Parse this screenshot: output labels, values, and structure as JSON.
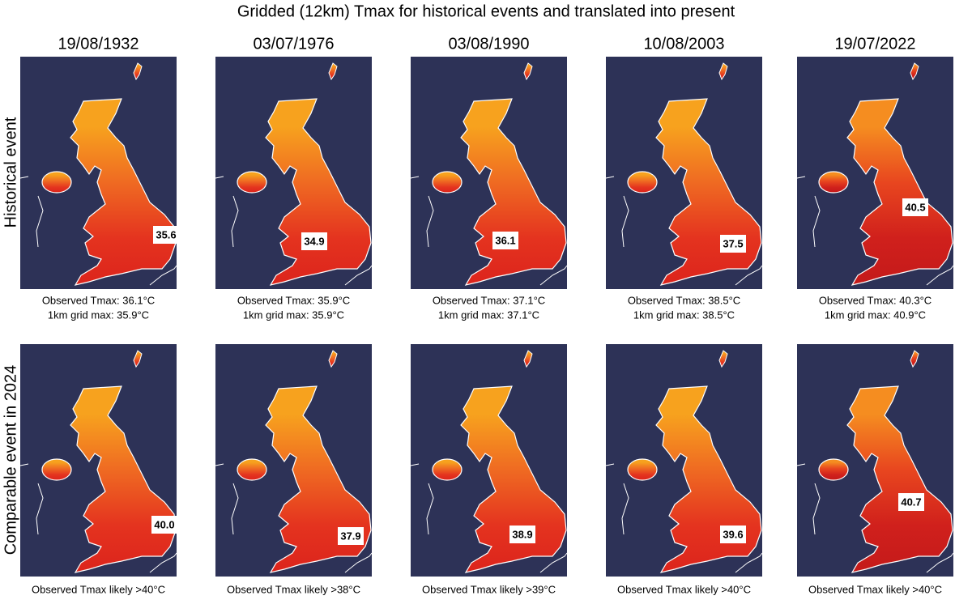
{
  "title": "Gridded (12km) Tmax for historical events and translated into present",
  "row_labels": [
    "Historical event",
    "Comparable event in 2024"
  ],
  "columns": [
    {
      "date": "19/08/1932",
      "historical": {
        "label": "35.6",
        "caption": [
          "Observed Tmax: 36.1°C",
          "1km grid max: 35.9°C"
        ]
      },
      "present": {
        "label": "40.0",
        "caption": "Observed Tmax likely >40°C"
      }
    },
    {
      "date": "03/07/1976",
      "historical": {
        "label": "34.9",
        "caption": [
          "Observed Tmax: 35.9°C",
          "1km grid max: 35.9°C"
        ]
      },
      "present": {
        "label": "37.9",
        "caption": "Observed Tmax likely >38°C"
      }
    },
    {
      "date": "03/08/1990",
      "historical": {
        "label": "36.1",
        "caption": [
          "Observed Tmax: 37.1°C",
          "1km grid max: 37.1°C"
        ]
      },
      "present": {
        "label": "38.9",
        "caption": "Observed Tmax likely >39°C"
      }
    },
    {
      "date": "10/08/2003",
      "historical": {
        "label": "37.5",
        "caption": [
          "Observed Tmax: 38.5°C",
          "1km grid max: 38.5°C"
        ]
      },
      "present": {
        "label": "39.6",
        "caption": "Observed Tmax likely >40°C"
      }
    },
    {
      "date": "19/07/2022",
      "historical": {
        "label": "40.5",
        "caption": [
          "Observed Tmax: 40.3°C",
          "1km grid max: 40.9°C"
        ]
      },
      "present": {
        "label": "40.7",
        "caption": "Observed Tmax likely >40°C"
      }
    }
  ]
}
